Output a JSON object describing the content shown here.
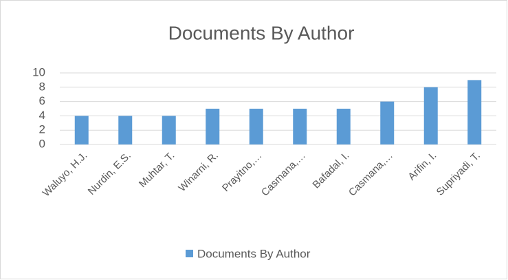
{
  "chart_data": {
    "type": "bar",
    "title": "Documents By Author",
    "categories": [
      "Waluyo, H.J.",
      "Nurdin, E.S.",
      "Muhtar, T.",
      "Winarni, R.",
      "Prayitno,…",
      "Casmana,…",
      "Bafadal, I.",
      "Casmana,…",
      "Arifin, I.",
      "Supriyadi, T."
    ],
    "series": [
      {
        "name": "Documents By Author",
        "color": "#5b9bd5",
        "values": [
          4,
          4,
          4,
          5,
          5,
          5,
          5,
          6,
          8,
          9
        ]
      }
    ],
    "ylim": [
      0,
      10
    ],
    "yticks": [
      0,
      2,
      4,
      6,
      8,
      10
    ],
    "grid": true,
    "legend": "bottom"
  }
}
